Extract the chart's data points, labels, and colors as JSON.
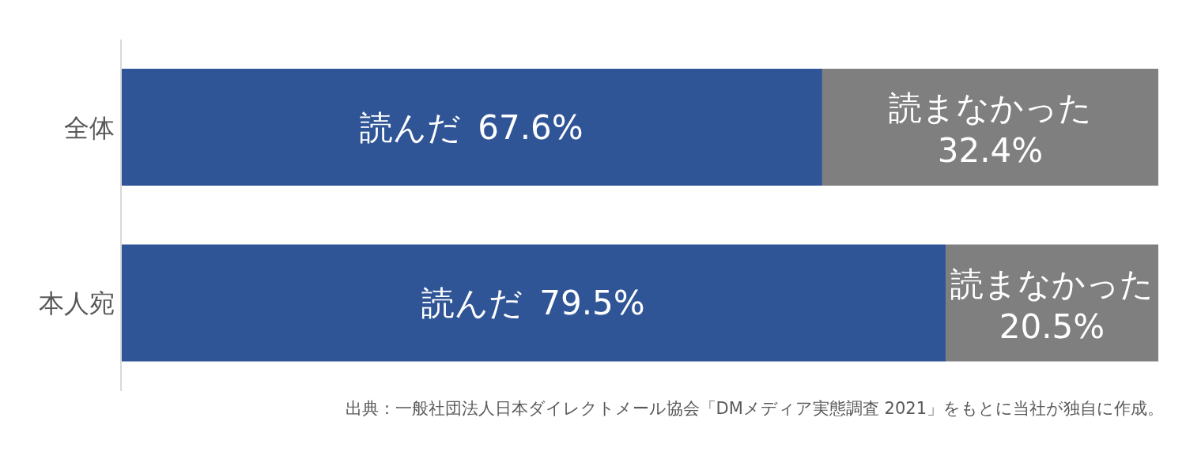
{
  "chart_data": {
    "type": "bar",
    "orientation": "horizontal",
    "stacked": true,
    "categories": [
      "全体",
      "本人宛"
    ],
    "series": [
      {
        "name": "読んだ",
        "color": "#2f5597",
        "values": [
          67.6,
          79.5
        ],
        "value_labels": [
          "67.6%",
          "79.5%"
        ]
      },
      {
        "name": "読まなかった",
        "color": "#7f7f7f",
        "values": [
          32.4,
          20.5
        ],
        "value_labels": [
          "32.4%",
          "20.5%"
        ]
      }
    ],
    "xlim": [
      0,
      100
    ],
    "tick_labels": "y",
    "grid": false,
    "legend": false,
    "annotations": [
      "出典：一般社団法人日本ダイレクトメール協会「DMメディア実態調査 2021」をもとに当社が独自に作成。"
    ]
  }
}
